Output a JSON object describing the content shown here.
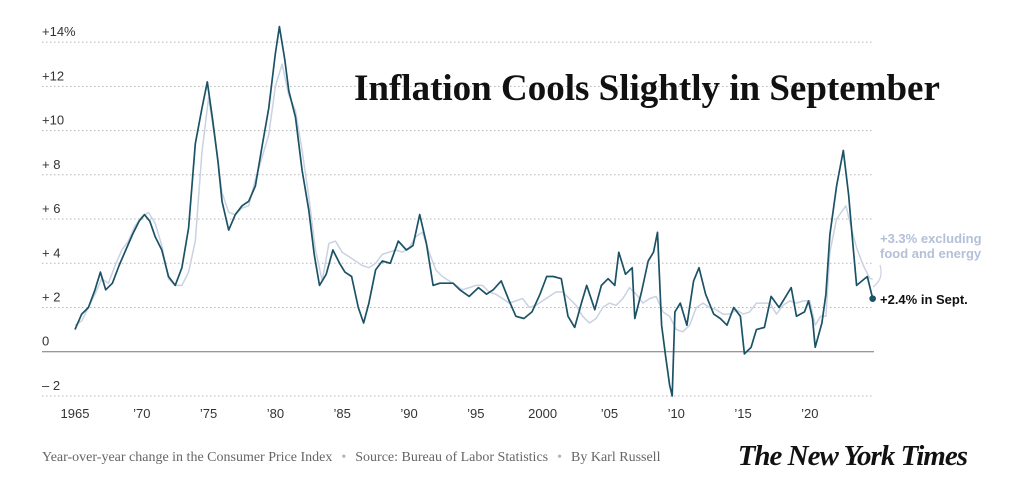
{
  "chart_data": {
    "type": "line",
    "title": "Inflation Cools Slightly in September",
    "ylim": [
      -2.5,
      15
    ],
    "xlim": [
      1965,
      2024.8
    ],
    "y_ticks": [
      {
        "value": 14,
        "label": "+14%"
      },
      {
        "value": 12,
        "label": "+12"
      },
      {
        "value": 10,
        "label": "+10"
      },
      {
        "value": 8,
        "label": "+ 8"
      },
      {
        "value": 6,
        "label": "+ 6"
      },
      {
        "value": 4,
        "label": "+ 4"
      },
      {
        "value": 2,
        "label": "+ 2"
      },
      {
        "value": 0,
        "label": "0"
      },
      {
        "value": -2,
        "label": "– 2"
      }
    ],
    "x_ticks": [
      {
        "value": 1965,
        "label": "1965"
      },
      {
        "value": 1970,
        "label": "’70"
      },
      {
        "value": 1975,
        "label": "’75"
      },
      {
        "value": 1980,
        "label": "’80"
      },
      {
        "value": 1985,
        "label": "’85"
      },
      {
        "value": 1990,
        "label": "’90"
      },
      {
        "value": 1995,
        "label": "’95"
      },
      {
        "value": 2000,
        "label": "2000"
      },
      {
        "value": 2005,
        "label": "’05"
      },
      {
        "value": 2010,
        "label": "’10"
      },
      {
        "value": 2015,
        "label": "’15"
      },
      {
        "value": 2020,
        "label": "’20"
      }
    ],
    "series": [
      {
        "id": "all-items",
        "color": "#1b5266",
        "points": [
          [
            1965,
            1.0
          ],
          [
            1965.5,
            1.7
          ],
          [
            1966,
            2.0
          ],
          [
            1966.5,
            2.8
          ],
          [
            1966.9,
            3.6
          ],
          [
            1967.3,
            2.8
          ],
          [
            1967.8,
            3.1
          ],
          [
            1968.3,
            3.9
          ],
          [
            1968.8,
            4.6
          ],
          [
            1969.3,
            5.3
          ],
          [
            1969.8,
            5.9
          ],
          [
            1970.2,
            6.2
          ],
          [
            1970.6,
            5.9
          ],
          [
            1971,
            5.2
          ],
          [
            1971.5,
            4.6
          ],
          [
            1972,
            3.4
          ],
          [
            1972.5,
            3.0
          ],
          [
            1973,
            3.8
          ],
          [
            1973.5,
            5.6
          ],
          [
            1974,
            9.4
          ],
          [
            1974.5,
            11.0
          ],
          [
            1974.9,
            12.2
          ],
          [
            1975.3,
            10.5
          ],
          [
            1975.7,
            8.6
          ],
          [
            1976,
            6.8
          ],
          [
            1976.5,
            5.5
          ],
          [
            1977,
            6.2
          ],
          [
            1977.5,
            6.6
          ],
          [
            1978,
            6.8
          ],
          [
            1978.5,
            7.5
          ],
          [
            1979,
            9.3
          ],
          [
            1979.5,
            11.0
          ],
          [
            1980,
            13.5
          ],
          [
            1980.3,
            14.7
          ],
          [
            1980.7,
            13.2
          ],
          [
            1981,
            11.8
          ],
          [
            1981.5,
            10.6
          ],
          [
            1982,
            8.2
          ],
          [
            1982.5,
            6.4
          ],
          [
            1982.9,
            4.4
          ],
          [
            1983.3,
            3.0
          ],
          [
            1983.8,
            3.5
          ],
          [
            1984.3,
            4.6
          ],
          [
            1984.8,
            4.0
          ],
          [
            1985.2,
            3.6
          ],
          [
            1985.7,
            3.4
          ],
          [
            1986.2,
            2.0
          ],
          [
            1986.6,
            1.3
          ],
          [
            1987,
            2.2
          ],
          [
            1987.5,
            3.7
          ],
          [
            1988,
            4.1
          ],
          [
            1988.6,
            4.0
          ],
          [
            1989.2,
            5.0
          ],
          [
            1989.8,
            4.6
          ],
          [
            1990.3,
            4.8
          ],
          [
            1990.8,
            6.2
          ],
          [
            1991.3,
            4.9
          ],
          [
            1991.8,
            3.0
          ],
          [
            1992.3,
            3.1
          ],
          [
            1992.8,
            3.1
          ],
          [
            1993.3,
            3.1
          ],
          [
            1993.8,
            2.8
          ],
          [
            1994.5,
            2.5
          ],
          [
            1995.2,
            2.9
          ],
          [
            1995.8,
            2.6
          ],
          [
            1996.3,
            2.8
          ],
          [
            1996.9,
            3.2
          ],
          [
            1997.5,
            2.3
          ],
          [
            1998,
            1.6
          ],
          [
            1998.6,
            1.5
          ],
          [
            1999.2,
            1.8
          ],
          [
            1999.8,
            2.6
          ],
          [
            2000.3,
            3.4
          ],
          [
            2000.8,
            3.4
          ],
          [
            2001.4,
            3.3
          ],
          [
            2001.9,
            1.6
          ],
          [
            2002.4,
            1.1
          ],
          [
            2002.9,
            2.2
          ],
          [
            2003.3,
            3.0
          ],
          [
            2003.9,
            1.9
          ],
          [
            2004.4,
            3.0
          ],
          [
            2004.9,
            3.3
          ],
          [
            2005.4,
            3.0
          ],
          [
            2005.7,
            4.5
          ],
          [
            2006.2,
            3.5
          ],
          [
            2006.7,
            3.8
          ],
          [
            2006.9,
            1.5
          ],
          [
            2007.4,
            2.7
          ],
          [
            2007.9,
            4.1
          ],
          [
            2008.3,
            4.5
          ],
          [
            2008.6,
            5.4
          ],
          [
            2008.9,
            1.2
          ],
          [
            2009.2,
            -0.2
          ],
          [
            2009.5,
            -1.5
          ],
          [
            2009.7,
            -2.0
          ],
          [
            2009.9,
            1.8
          ],
          [
            2010.3,
            2.2
          ],
          [
            2010.8,
            1.2
          ],
          [
            2011.3,
            3.2
          ],
          [
            2011.7,
            3.8
          ],
          [
            2012.2,
            2.6
          ],
          [
            2012.8,
            1.7
          ],
          [
            2013.3,
            1.5
          ],
          [
            2013.8,
            1.2
          ],
          [
            2014.3,
            2.0
          ],
          [
            2014.8,
            1.6
          ],
          [
            2015.1,
            -0.1
          ],
          [
            2015.6,
            0.2
          ],
          [
            2016,
            1.0
          ],
          [
            2016.6,
            1.1
          ],
          [
            2017.1,
            2.5
          ],
          [
            2017.7,
            2.0
          ],
          [
            2018.2,
            2.5
          ],
          [
            2018.6,
            2.9
          ],
          [
            2019,
            1.6
          ],
          [
            2019.6,
            1.8
          ],
          [
            2019.9,
            2.3
          ],
          [
            2020.2,
            1.5
          ],
          [
            2020.4,
            0.2
          ],
          [
            2020.9,
            1.3
          ],
          [
            2021.2,
            2.6
          ],
          [
            2021.5,
            5.3
          ],
          [
            2022,
            7.5
          ],
          [
            2022.5,
            9.1
          ],
          [
            2022.9,
            7.1
          ],
          [
            2023.2,
            5.0
          ],
          [
            2023.5,
            3.0
          ],
          [
            2023.9,
            3.2
          ],
          [
            2024.3,
            3.4
          ],
          [
            2024.7,
            2.4
          ]
        ]
      },
      {
        "id": "core",
        "color": "#c9d2e2",
        "points": [
          [
            1965,
            1.2
          ],
          [
            1965.5,
            1.4
          ],
          [
            1966,
            2.0
          ],
          [
            1966.5,
            2.6
          ],
          [
            1967,
            3.3
          ],
          [
            1967.5,
            3.1
          ],
          [
            1968,
            3.9
          ],
          [
            1968.5,
            4.6
          ],
          [
            1969,
            5.0
          ],
          [
            1969.5,
            5.7
          ],
          [
            1970,
            6.1
          ],
          [
            1970.5,
            6.3
          ],
          [
            1971,
            5.8
          ],
          [
            1971.5,
            4.8
          ],
          [
            1972,
            3.3
          ],
          [
            1972.5,
            3.0
          ],
          [
            1973,
            3.0
          ],
          [
            1973.5,
            3.6
          ],
          [
            1974,
            5.0
          ],
          [
            1974.5,
            9.0
          ],
          [
            1975,
            11.5
          ],
          [
            1975.5,
            9.5
          ],
          [
            1976,
            7.2
          ],
          [
            1976.5,
            6.3
          ],
          [
            1977,
            6.2
          ],
          [
            1977.5,
            6.5
          ],
          [
            1978,
            6.6
          ],
          [
            1978.5,
            7.8
          ],
          [
            1979,
            8.8
          ],
          [
            1979.5,
            9.8
          ],
          [
            1980,
            12.0
          ],
          [
            1980.5,
            13.0
          ],
          [
            1981,
            11.6
          ],
          [
            1981.5,
            10.9
          ],
          [
            1982,
            9.1
          ],
          [
            1982.5,
            7.0
          ],
          [
            1983,
            4.6
          ],
          [
            1983.5,
            3.2
          ],
          [
            1984,
            4.9
          ],
          [
            1984.5,
            5.0
          ],
          [
            1985,
            4.5
          ],
          [
            1985.5,
            4.3
          ],
          [
            1986,
            4.1
          ],
          [
            1986.5,
            3.9
          ],
          [
            1987,
            3.8
          ],
          [
            1987.5,
            4.0
          ],
          [
            1988,
            4.4
          ],
          [
            1988.5,
            4.5
          ],
          [
            1989,
            4.6
          ],
          [
            1989.5,
            4.5
          ],
          [
            1990,
            4.7
          ],
          [
            1990.5,
            5.2
          ],
          [
            1991,
            5.4
          ],
          [
            1991.5,
            4.5
          ],
          [
            1992,
            3.7
          ],
          [
            1992.5,
            3.4
          ],
          [
            1993,
            3.2
          ],
          [
            1993.5,
            3.0
          ],
          [
            1994,
            2.8
          ],
          [
            1994.5,
            2.9
          ],
          [
            1995,
            3.0
          ],
          [
            1995.5,
            3.0
          ],
          [
            1996,
            2.7
          ],
          [
            1996.5,
            2.6
          ],
          [
            1997,
            2.4
          ],
          [
            1997.5,
            2.2
          ],
          [
            1998,
            2.3
          ],
          [
            1998.5,
            2.4
          ],
          [
            1999,
            2.0
          ],
          [
            1999.5,
            2.1
          ],
          [
            2000,
            2.3
          ],
          [
            2000.5,
            2.5
          ],
          [
            2001,
            2.7
          ],
          [
            2001.5,
            2.7
          ],
          [
            2002,
            2.4
          ],
          [
            2002.5,
            2.1
          ],
          [
            2003,
            1.6
          ],
          [
            2003.5,
            1.3
          ],
          [
            2004,
            1.5
          ],
          [
            2004.5,
            2.0
          ],
          [
            2005,
            2.2
          ],
          [
            2005.5,
            2.1
          ],
          [
            2006,
            2.4
          ],
          [
            2006.5,
            2.9
          ],
          [
            2007,
            2.6
          ],
          [
            2007.5,
            2.2
          ],
          [
            2008,
            2.4
          ],
          [
            2008.5,
            2.5
          ],
          [
            2009,
            1.8
          ],
          [
            2009.5,
            1.6
          ],
          [
            2010,
            1.0
          ],
          [
            2010.5,
            0.9
          ],
          [
            2011,
            1.2
          ],
          [
            2011.5,
            2.0
          ],
          [
            2012,
            2.2
          ],
          [
            2012.5,
            2.0
          ],
          [
            2013,
            1.9
          ],
          [
            2013.5,
            1.7
          ],
          [
            2014,
            1.7
          ],
          [
            2014.5,
            1.9
          ],
          [
            2015,
            1.7
          ],
          [
            2015.5,
            1.8
          ],
          [
            2016,
            2.2
          ],
          [
            2016.5,
            2.2
          ],
          [
            2017,
            2.2
          ],
          [
            2017.5,
            1.7
          ],
          [
            2018,
            2.1
          ],
          [
            2018.5,
            2.3
          ],
          [
            2019,
            2.2
          ],
          [
            2019.5,
            2.3
          ],
          [
            2020,
            2.3
          ],
          [
            2020.4,
            1.2
          ],
          [
            2020.8,
            1.6
          ],
          [
            2021.2,
            1.6
          ],
          [
            2021.5,
            4.5
          ],
          [
            2022,
            6.0
          ],
          [
            2022.7,
            6.6
          ],
          [
            2023.1,
            5.6
          ],
          [
            2023.5,
            4.7
          ],
          [
            2024,
            3.9
          ],
          [
            2024.5,
            3.3
          ],
          [
            2024.7,
            3.3
          ]
        ]
      }
    ],
    "annotations": {
      "core_line1": "+3.3% excluding",
      "core_line2": "food and energy",
      "all_items": "+2.4% in Sept."
    }
  },
  "footer": {
    "description": "Year-over-year change in the Consumer Price Index",
    "source": "Source: Bureau of Labor Statistics",
    "byline": "By Karl Russell",
    "separator": "•"
  },
  "logo": "The New York Times"
}
